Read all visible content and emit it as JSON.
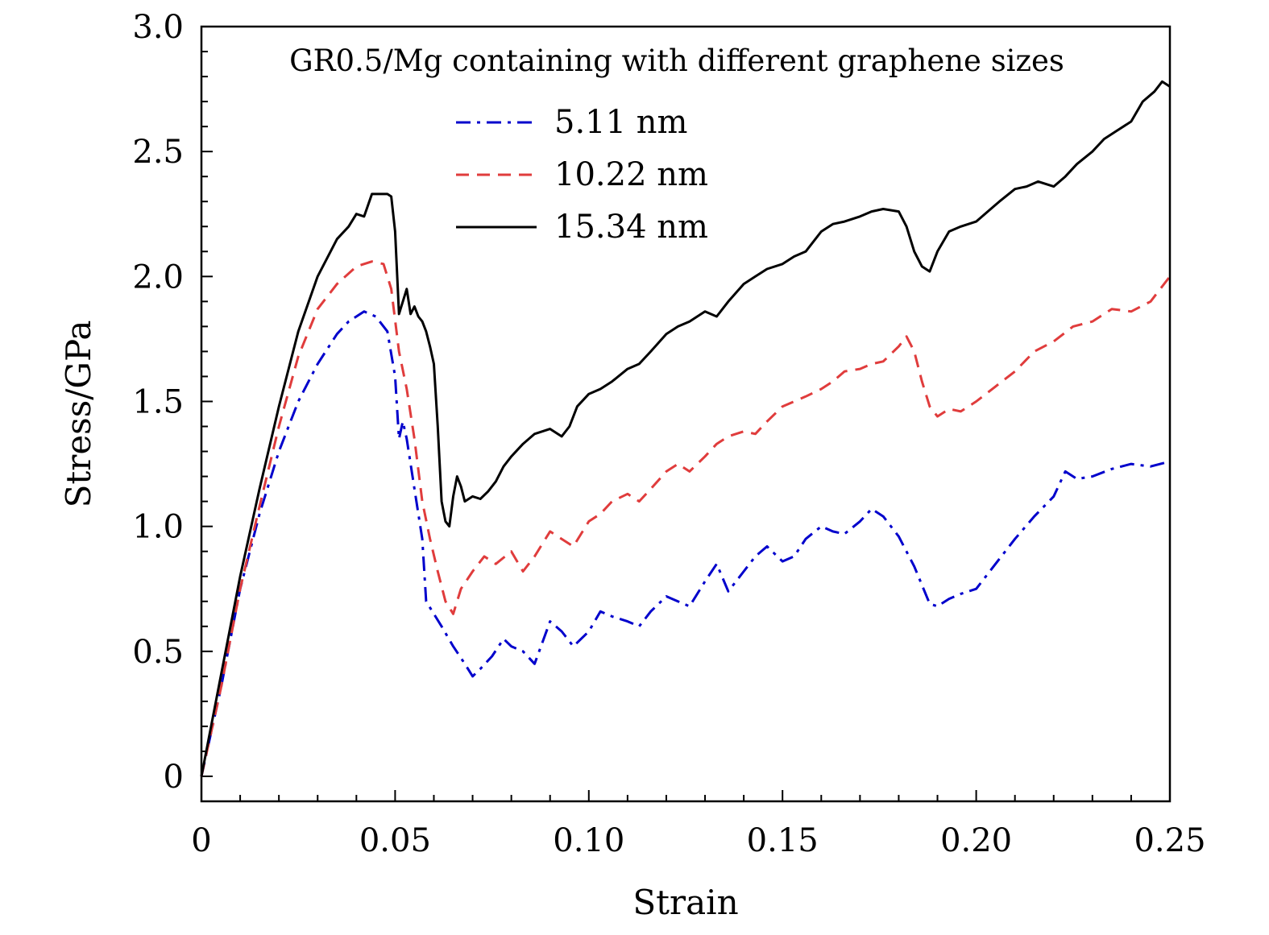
{
  "chart_data": {
    "type": "line",
    "title": "",
    "annotation": "GR0.5/Mg containing with different graphene sizes",
    "xlabel": "Strain",
    "ylabel": "Stress/GPa",
    "xlim": [
      0,
      0.25
    ],
    "ylim": [
      -0.1,
      3.0
    ],
    "x_ticks": [
      0,
      0.05,
      0.1,
      0.15,
      0.2,
      0.25
    ],
    "x_tick_labels": [
      "0",
      "0.05",
      "0.10",
      "0.15",
      "0.20",
      "0.25"
    ],
    "y_ticks": [
      0,
      0.5,
      1.0,
      1.5,
      2.0,
      2.5,
      3.0
    ],
    "y_tick_labels": [
      "0",
      "0.5",
      "1.0",
      "1.5",
      "2.0",
      "2.5",
      "3.0"
    ],
    "grid": false,
    "legend_position": "top-center",
    "series": [
      {
        "name": "5.11 nm",
        "color": "#0000cc",
        "dash": "dashdot",
        "x": [
          0,
          0.005,
          0.01,
          0.015,
          0.02,
          0.025,
          0.03,
          0.035,
          0.038,
          0.042,
          0.045,
          0.048,
          0.05,
          0.051,
          0.052,
          0.053,
          0.055,
          0.057,
          0.058,
          0.06,
          0.062,
          0.065,
          0.068,
          0.07,
          0.072,
          0.075,
          0.078,
          0.08,
          0.083,
          0.086,
          0.09,
          0.093,
          0.096,
          0.1,
          0.103,
          0.106,
          0.11,
          0.113,
          0.116,
          0.12,
          0.123,
          0.126,
          0.13,
          0.133,
          0.136,
          0.14,
          0.143,
          0.146,
          0.15,
          0.153,
          0.156,
          0.16,
          0.163,
          0.166,
          0.17,
          0.173,
          0.176,
          0.18,
          0.184,
          0.188,
          0.19,
          0.193,
          0.196,
          0.2,
          0.205,
          0.21,
          0.215,
          0.22,
          0.223,
          0.226,
          0.23,
          0.235,
          0.24,
          0.245,
          0.25
        ],
        "y": [
          0,
          0.35,
          0.75,
          1.05,
          1.3,
          1.5,
          1.65,
          1.77,
          1.82,
          1.86,
          1.84,
          1.78,
          1.6,
          1.35,
          1.42,
          1.35,
          1.15,
          0.95,
          0.7,
          0.65,
          0.6,
          0.52,
          0.45,
          0.4,
          0.43,
          0.48,
          0.55,
          0.52,
          0.5,
          0.45,
          0.62,
          0.58,
          0.52,
          0.58,
          0.66,
          0.64,
          0.62,
          0.6,
          0.66,
          0.72,
          0.7,
          0.68,
          0.78,
          0.85,
          0.74,
          0.82,
          0.88,
          0.92,
          0.86,
          0.88,
          0.95,
          1.0,
          0.98,
          0.97,
          1.02,
          1.07,
          1.04,
          0.96,
          0.84,
          0.69,
          0.68,
          0.71,
          0.73,
          0.75,
          0.85,
          0.95,
          1.04,
          1.12,
          1.22,
          1.19,
          1.2,
          1.23,
          1.25,
          1.24,
          1.26
        ]
      },
      {
        "name": "10.22 nm",
        "color": "#e03c3c",
        "dash": "dashed",
        "x": [
          0,
          0.005,
          0.01,
          0.015,
          0.02,
          0.025,
          0.03,
          0.035,
          0.04,
          0.044,
          0.047,
          0.049,
          0.051,
          0.053,
          0.055,
          0.057,
          0.059,
          0.061,
          0.063,
          0.065,
          0.067,
          0.07,
          0.073,
          0.076,
          0.08,
          0.083,
          0.086,
          0.09,
          0.093,
          0.096,
          0.1,
          0.103,
          0.106,
          0.11,
          0.113,
          0.116,
          0.12,
          0.123,
          0.126,
          0.13,
          0.133,
          0.136,
          0.14,
          0.143,
          0.146,
          0.15,
          0.153,
          0.156,
          0.16,
          0.163,
          0.166,
          0.17,
          0.173,
          0.176,
          0.18,
          0.182,
          0.184,
          0.186,
          0.188,
          0.19,
          0.193,
          0.196,
          0.2,
          0.205,
          0.21,
          0.215,
          0.22,
          0.225,
          0.23,
          0.235,
          0.24,
          0.245,
          0.25
        ],
        "y": [
          0,
          0.35,
          0.75,
          1.08,
          1.4,
          1.68,
          1.87,
          1.97,
          2.04,
          2.06,
          2.05,
          1.95,
          1.7,
          1.55,
          1.35,
          1.1,
          0.95,
          0.82,
          0.7,
          0.65,
          0.75,
          0.82,
          0.88,
          0.85,
          0.9,
          0.82,
          0.88,
          0.98,
          0.95,
          0.92,
          1.02,
          1.05,
          1.1,
          1.13,
          1.1,
          1.15,
          1.22,
          1.25,
          1.22,
          1.28,
          1.33,
          1.36,
          1.38,
          1.37,
          1.42,
          1.48,
          1.5,
          1.52,
          1.55,
          1.58,
          1.62,
          1.63,
          1.65,
          1.66,
          1.72,
          1.76,
          1.7,
          1.58,
          1.48,
          1.44,
          1.47,
          1.46,
          1.5,
          1.56,
          1.62,
          1.7,
          1.74,
          1.8,
          1.82,
          1.87,
          1.86,
          1.9,
          2.0
        ]
      },
      {
        "name": "15.34 nm",
        "color": "#000000",
        "dash": "solid",
        "x": [
          0,
          0.005,
          0.01,
          0.015,
          0.02,
          0.025,
          0.03,
          0.035,
          0.038,
          0.04,
          0.042,
          0.044,
          0.046,
          0.048,
          0.049,
          0.05,
          0.051,
          0.052,
          0.053,
          0.054,
          0.055,
          0.056,
          0.057,
          0.058,
          0.059,
          0.06,
          0.061,
          0.062,
          0.063,
          0.064,
          0.065,
          0.066,
          0.067,
          0.068,
          0.07,
          0.072,
          0.074,
          0.076,
          0.078,
          0.08,
          0.083,
          0.086,
          0.09,
          0.093,
          0.095,
          0.097,
          0.1,
          0.103,
          0.106,
          0.11,
          0.113,
          0.116,
          0.12,
          0.123,
          0.126,
          0.13,
          0.133,
          0.136,
          0.14,
          0.143,
          0.146,
          0.15,
          0.153,
          0.156,
          0.16,
          0.163,
          0.166,
          0.17,
          0.173,
          0.176,
          0.18,
          0.182,
          0.184,
          0.186,
          0.188,
          0.19,
          0.193,
          0.196,
          0.2,
          0.203,
          0.206,
          0.21,
          0.213,
          0.216,
          0.22,
          0.223,
          0.226,
          0.23,
          0.233,
          0.236,
          0.24,
          0.243,
          0.246,
          0.248,
          0.25
        ],
        "y": [
          0,
          0.4,
          0.8,
          1.15,
          1.48,
          1.78,
          2.0,
          2.15,
          2.2,
          2.25,
          2.24,
          2.33,
          2.33,
          2.33,
          2.32,
          2.18,
          1.85,
          1.9,
          1.95,
          1.85,
          1.88,
          1.84,
          1.82,
          1.78,
          1.72,
          1.65,
          1.4,
          1.1,
          1.02,
          1.0,
          1.12,
          1.2,
          1.16,
          1.1,
          1.12,
          1.11,
          1.14,
          1.18,
          1.24,
          1.28,
          1.33,
          1.37,
          1.39,
          1.36,
          1.4,
          1.48,
          1.53,
          1.55,
          1.58,
          1.63,
          1.65,
          1.7,
          1.77,
          1.8,
          1.82,
          1.86,
          1.84,
          1.9,
          1.97,
          2.0,
          2.03,
          2.05,
          2.08,
          2.1,
          2.18,
          2.21,
          2.22,
          2.24,
          2.26,
          2.27,
          2.26,
          2.2,
          2.1,
          2.04,
          2.02,
          2.1,
          2.18,
          2.2,
          2.22,
          2.26,
          2.3,
          2.35,
          2.36,
          2.38,
          2.36,
          2.4,
          2.45,
          2.5,
          2.55,
          2.58,
          2.62,
          2.7,
          2.74,
          2.78,
          2.76
        ]
      }
    ]
  }
}
